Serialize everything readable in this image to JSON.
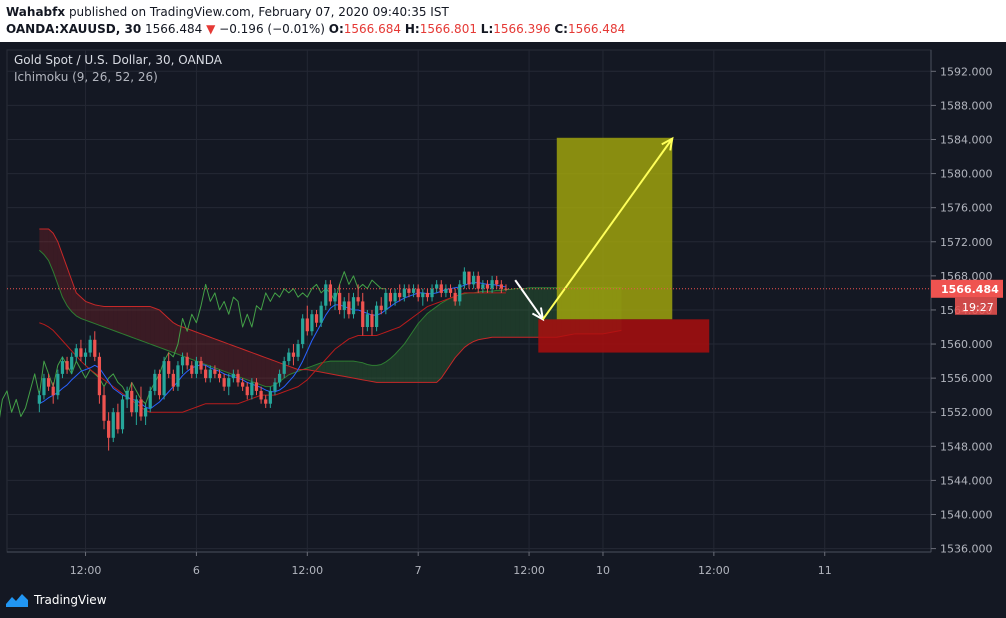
{
  "header": {
    "author": "Wahabfx",
    "published_text": "published on TradingView.com, February 07, 2020 09:40:35 IST",
    "symbol": "OANDA:XAUUSD, 30",
    "last": "1566.484",
    "change_arrow": "▼",
    "change": "−0.196 (−0.01%)",
    "o_label": "O:",
    "o": "1566.684",
    "h_label": "H:",
    "h": "1566.801",
    "l_label": "L:",
    "l": "1566.396",
    "c_label": "C:",
    "c": "1566.484"
  },
  "legend": {
    "title": "Gold Spot / U.S. Dollar, 30, OANDA",
    "indicator": "Ichimoku (9, 26, 52, 26)"
  },
  "brand": {
    "name": "TradingView"
  },
  "colors": {
    "background": "#141823",
    "up": "#26a69a",
    "down": "#ef5350",
    "tenkan": "#2962ff",
    "kijun": "#b71c1c",
    "chikou": "#43a047",
    "span_a": "#2e7d32",
    "span_b": "#c62828",
    "target_zone": "#a4a70c",
    "stop_zone": "#b00d0d",
    "arrow": "#ffff59"
  },
  "chart_data": {
    "type": "candlestick",
    "y_ticks": [
      "1592.000",
      "1588.000",
      "1584.000",
      "1580.000",
      "1576.000",
      "1572.000",
      "1568.000",
      "1564.000",
      "1560.000",
      "1556.000",
      "1552.000",
      "1548.000",
      "1544.000",
      "1540.000",
      "1536.000"
    ],
    "y_range": [
      1535.6,
      1594.5
    ],
    "x_ticks": [
      {
        "label": "12:00",
        "bar": 10
      },
      {
        "label": "6",
        "bar": 34
      },
      {
        "label": "12:00",
        "bar": 58
      },
      {
        "label": "7",
        "bar": 82
      },
      {
        "label": "12:00",
        "bar": 106
      },
      {
        "label": "10",
        "bar": 122
      },
      {
        "label": "12:00",
        "bar": 146
      },
      {
        "label": "11",
        "bar": 170
      }
    ],
    "x_range_bars": [
      -7,
      193
    ],
    "last_price": {
      "value": 1566.484,
      "label": "1566.484"
    },
    "countdown": "19:27",
    "candles": [
      [
        1553.0,
        1554.5,
        1552.0,
        1554.0
      ],
      [
        1554.0,
        1556.5,
        1553.5,
        1556.0
      ],
      [
        1556.0,
        1556.5,
        1554.5,
        1555.0
      ],
      [
        1555.0,
        1555.5,
        1553.0,
        1554.0
      ],
      [
        1554.0,
        1557.0,
        1553.5,
        1556.5
      ],
      [
        1556.5,
        1558.5,
        1556.0,
        1558.0
      ],
      [
        1558.0,
        1558.5,
        1556.5,
        1557.0
      ],
      [
        1557.0,
        1559.0,
        1556.5,
        1558.5
      ],
      [
        1558.5,
        1560.0,
        1558.0,
        1559.5
      ],
      [
        1559.5,
        1560.5,
        1558.0,
        1558.5
      ],
      [
        1558.5,
        1559.5,
        1557.5,
        1559.0
      ],
      [
        1559.0,
        1561.0,
        1558.5,
        1560.5
      ],
      [
        1560.5,
        1561.5,
        1558.0,
        1558.5
      ],
      [
        1558.5,
        1559.0,
        1553.0,
        1554.0
      ],
      [
        1554.0,
        1555.0,
        1550.0,
        1551.0
      ],
      [
        1551.0,
        1552.0,
        1547.5,
        1549.0
      ],
      [
        1549.0,
        1552.5,
        1548.5,
        1552.0
      ],
      [
        1552.0,
        1553.0,
        1549.5,
        1550.0
      ],
      [
        1550.0,
        1554.0,
        1549.5,
        1553.5
      ],
      [
        1553.5,
        1555.0,
        1552.5,
        1554.5
      ],
      [
        1554.5,
        1555.5,
        1551.5,
        1552.0
      ],
      [
        1552.0,
        1554.0,
        1550.5,
        1553.5
      ],
      [
        1553.5,
        1555.0,
        1551.0,
        1551.5
      ],
      [
        1551.5,
        1553.0,
        1550.5,
        1552.5
      ],
      [
        1552.5,
        1555.0,
        1552.0,
        1554.5
      ],
      [
        1554.5,
        1557.0,
        1554.0,
        1556.5
      ],
      [
        1556.5,
        1557.0,
        1553.5,
        1554.0
      ],
      [
        1554.0,
        1558.5,
        1553.5,
        1558.0
      ],
      [
        1558.0,
        1559.0,
        1556.0,
        1556.5
      ],
      [
        1556.5,
        1557.0,
        1554.5,
        1555.0
      ],
      [
        1555.0,
        1558.0,
        1554.5,
        1557.5
      ],
      [
        1557.5,
        1559.0,
        1556.5,
        1558.5
      ],
      [
        1558.5,
        1559.0,
        1557.0,
        1557.5
      ],
      [
        1557.5,
        1558.0,
        1556.0,
        1556.5
      ],
      [
        1556.5,
        1558.5,
        1556.0,
        1558.0
      ],
      [
        1558.0,
        1558.5,
        1556.5,
        1557.0
      ],
      [
        1557.0,
        1557.5,
        1555.5,
        1556.0
      ],
      [
        1556.0,
        1557.5,
        1555.5,
        1557.0
      ],
      [
        1557.0,
        1557.5,
        1556.0,
        1556.5
      ],
      [
        1556.5,
        1557.0,
        1555.5,
        1556.0
      ],
      [
        1556.0,
        1556.5,
        1554.5,
        1555.0
      ],
      [
        1555.0,
        1556.5,
        1554.0,
        1556.0
      ],
      [
        1556.0,
        1557.0,
        1555.5,
        1556.5
      ],
      [
        1556.5,
        1557.0,
        1555.0,
        1555.5
      ],
      [
        1555.5,
        1556.0,
        1554.5,
        1555.0
      ],
      [
        1555.0,
        1555.5,
        1553.5,
        1554.0
      ],
      [
        1554.0,
        1556.0,
        1553.5,
        1555.5
      ],
      [
        1555.5,
        1556.0,
        1554.0,
        1554.5
      ],
      [
        1554.5,
        1555.0,
        1553.0,
        1553.5
      ],
      [
        1553.5,
        1554.0,
        1552.5,
        1553.0
      ],
      [
        1553.0,
        1555.0,
        1552.5,
        1554.5
      ],
      [
        1554.5,
        1556.0,
        1554.0,
        1555.5
      ],
      [
        1555.5,
        1557.0,
        1555.0,
        1556.5
      ],
      [
        1556.5,
        1558.5,
        1556.0,
        1558.0
      ],
      [
        1558.0,
        1559.5,
        1557.5,
        1559.0
      ],
      [
        1559.0,
        1560.0,
        1557.5,
        1558.5
      ],
      [
        1558.5,
        1560.5,
        1558.0,
        1560.0
      ],
      [
        1560.0,
        1563.5,
        1559.5,
        1563.0
      ],
      [
        1563.0,
        1564.5,
        1561.0,
        1561.5
      ],
      [
        1561.5,
        1564.0,
        1561.0,
        1563.5
      ],
      [
        1563.5,
        1564.0,
        1562.0,
        1562.5
      ],
      [
        1562.5,
        1565.0,
        1562.0,
        1564.5
      ],
      [
        1564.5,
        1567.5,
        1564.0,
        1567.0
      ],
      [
        1567.0,
        1567.5,
        1564.5,
        1565.0
      ],
      [
        1565.0,
        1566.5,
        1564.0,
        1566.0
      ],
      [
        1566.0,
        1567.0,
        1563.5,
        1564.0
      ],
      [
        1564.0,
        1565.5,
        1563.0,
        1565.0
      ],
      [
        1565.0,
        1566.0,
        1563.0,
        1563.5
      ],
      [
        1563.5,
        1566.0,
        1563.0,
        1565.5
      ],
      [
        1565.5,
        1567.0,
        1564.5,
        1565.0
      ],
      [
        1565.0,
        1566.0,
        1561.0,
        1562.0
      ],
      [
        1562.0,
        1564.0,
        1561.5,
        1563.5
      ],
      [
        1563.5,
        1564.0,
        1561.0,
        1562.0
      ],
      [
        1562.0,
        1565.0,
        1561.5,
        1564.5
      ],
      [
        1564.5,
        1565.5,
        1563.5,
        1564.0
      ],
      [
        1564.0,
        1566.5,
        1563.5,
        1566.0
      ],
      [
        1566.0,
        1566.5,
        1564.5,
        1565.0
      ],
      [
        1565.0,
        1566.5,
        1564.5,
        1566.0
      ],
      [
        1566.0,
        1567.0,
        1565.0,
        1565.5
      ],
      [
        1565.5,
        1567.0,
        1565.0,
        1566.5
      ],
      [
        1566.5,
        1567.0,
        1565.5,
        1566.0
      ],
      [
        1566.0,
        1567.0,
        1565.5,
        1566.5
      ],
      [
        1566.5,
        1567.0,
        1565.0,
        1565.5
      ],
      [
        1565.5,
        1566.5,
        1564.5,
        1566.0
      ],
      [
        1566.0,
        1566.5,
        1565.0,
        1565.5
      ],
      [
        1565.5,
        1567.0,
        1565.0,
        1566.5
      ],
      [
        1566.5,
        1567.5,
        1566.0,
        1567.0
      ],
      [
        1567.0,
        1567.5,
        1565.5,
        1566.0
      ],
      [
        1566.0,
        1567.0,
        1565.5,
        1566.5
      ],
      [
        1566.5,
        1567.0,
        1565.5,
        1566.0
      ],
      [
        1566.0,
        1566.5,
        1564.5,
        1565.0
      ],
      [
        1565.0,
        1567.5,
        1564.5,
        1567.0
      ],
      [
        1567.0,
        1569.0,
        1566.5,
        1568.5
      ],
      [
        1568.5,
        1568.5,
        1566.5,
        1567.0
      ],
      [
        1567.0,
        1568.5,
        1566.5,
        1568.0
      ],
      [
        1568.0,
        1568.5,
        1566.0,
        1566.5
      ],
      [
        1566.5,
        1567.5,
        1566.0,
        1567.0
      ],
      [
        1567.0,
        1567.5,
        1566.0,
        1566.5
      ],
      [
        1566.5,
        1568.0,
        1566.0,
        1567.5
      ],
      [
        1567.5,
        1568.0,
        1566.5,
        1567.0
      ],
      [
        1567.0,
        1567.5,
        1566.0,
        1566.5
      ],
      [
        1566.5,
        1567.0,
        1566.2,
        1566.484
      ]
    ],
    "tenkan": [
      1553.0,
      1553.3,
      1553.7,
      1554.0,
      1554.3,
      1554.8,
      1555.2,
      1555.8,
      1556.3,
      1556.8,
      1557.0,
      1557.2,
      1557.5,
      1557.2,
      1556.4,
      1555.6,
      1554.8,
      1554.4,
      1554.0,
      1553.8,
      1553.5,
      1553.4,
      1553.0,
      1552.6,
      1552.4,
      1552.8,
      1553.2,
      1553.8,
      1554.4,
      1555.0,
      1555.6,
      1556.3,
      1556.8,
      1557.2,
      1557.4,
      1557.6,
      1557.5,
      1557.2,
      1557.0,
      1556.8,
      1556.5,
      1556.3,
      1556.2,
      1556.0,
      1555.8,
      1555.5,
      1555.3,
      1555.1,
      1554.9,
      1554.6,
      1554.4,
      1554.4,
      1554.6,
      1555.0,
      1555.6,
      1556.2,
      1557.0,
      1558.0,
      1559.2,
      1560.4,
      1561.4,
      1562.4,
      1563.4,
      1564.2,
      1564.6,
      1564.6,
      1564.4,
      1564.2,
      1564.0,
      1564.0,
      1563.8,
      1563.6,
      1563.4,
      1563.4,
      1563.6,
      1564.0,
      1564.4,
      1564.8,
      1565.1,
      1565.4,
      1565.6,
      1565.8,
      1566.0,
      1566.0,
      1565.9,
      1565.9,
      1566.0,
      1566.2,
      1566.4,
      1566.5,
      1566.6,
      1566.7,
      1566.9,
      1567.1,
      1567.2,
      1567.2,
      1567.1,
      1567.0,
      1567.0,
      1566.9,
      1566.8,
      1566.7
    ],
    "kijun": [
      1562.5,
      1562.3,
      1562.0,
      1561.6,
      1561.0,
      1560.4,
      1559.8,
      1559.2,
      1558.6,
      1558.0,
      1557.5,
      1557.0,
      1556.6,
      1556.2,
      1555.8,
      1555.4,
      1555.0,
      1554.6,
      1554.2,
      1553.8,
      1553.4,
      1553.0,
      1552.6,
      1552.2,
      1552.0,
      1552.0,
      1552.0,
      1552.0,
      1552.0,
      1552.0,
      1552.0,
      1552.0,
      1552.2,
      1552.4,
      1552.6,
      1552.8,
      1553.0,
      1553.0,
      1553.0,
      1553.0,
      1553.0,
      1553.0,
      1553.0,
      1553.0,
      1553.2,
      1553.4,
      1553.6,
      1553.8,
      1554.0,
      1554.0,
      1554.0,
      1554.0,
      1554.2,
      1554.4,
      1554.6,
      1554.8,
      1555.0,
      1555.4,
      1555.8,
      1556.4,
      1557.0,
      1557.6,
      1558.2,
      1558.8,
      1559.4,
      1559.8,
      1560.2,
      1560.6,
      1560.8,
      1561.0,
      1561.0,
      1561.0,
      1561.0,
      1561.0,
      1561.2,
      1561.4,
      1561.6,
      1561.8,
      1562.0,
      1562.4,
      1562.8,
      1563.2,
      1563.6,
      1564.0,
      1564.4,
      1564.6,
      1564.8,
      1565.0,
      1565.2,
      1565.4,
      1565.6,
      1565.8,
      1566.0,
      1566.0,
      1566.0,
      1566.0,
      1566.0,
      1566.0,
      1566.0,
      1566.0,
      1566.0,
      1566.0
    ],
    "chikou_shift": -26,
    "cloud": {
      "span_a": [
        1571.0,
        1570.5,
        1569.8,
        1568.5,
        1567.0,
        1565.5,
        1564.5,
        1563.8,
        1563.3,
        1563.0,
        1562.8,
        1562.6,
        1562.4,
        1562.2,
        1562.0,
        1561.8,
        1561.6,
        1561.4,
        1561.2,
        1561.0,
        1560.8,
        1560.6,
        1560.4,
        1560.2,
        1560.0,
        1559.8,
        1559.6,
        1559.4,
        1559.2,
        1559.0,
        1558.8,
        1558.6,
        1558.4,
        1558.2,
        1558.0,
        1557.8,
        1557.6,
        1557.4,
        1557.2,
        1557.0,
        1556.8,
        1556.6,
        1556.4,
        1556.2,
        1556.0,
        1555.8,
        1555.6,
        1555.4,
        1555.2,
        1555.0,
        1555.0,
        1555.2,
        1555.6,
        1556.0,
        1556.4,
        1556.6,
        1556.8,
        1557.0,
        1557.2,
        1557.4,
        1557.6,
        1557.8,
        1557.9,
        1558.0,
        1558.0,
        1558.0,
        1558.0,
        1558.0,
        1558.0,
        1557.9,
        1557.8,
        1557.6,
        1557.5,
        1557.5,
        1557.6,
        1557.9,
        1558.3,
        1558.8,
        1559.4,
        1560.0,
        1560.8,
        1561.6,
        1562.4,
        1563.0,
        1563.6,
        1564.0,
        1564.4,
        1564.8,
        1565.1,
        1565.4,
        1565.6,
        1565.8,
        1565.9,
        1566.0,
        1566.0,
        1566.1,
        1566.2,
        1566.2,
        1566.2,
        1566.3,
        1566.3,
        1566.4,
        1566.4,
        1566.5,
        1566.5,
        1566.5,
        1566.6,
        1566.6,
        1566.6,
        1566.6,
        1566.6,
        1566.6,
        1566.6,
        1566.6,
        1566.6,
        1566.6,
        1566.6,
        1566.6,
        1566.6,
        1566.6,
        1566.6,
        1566.6,
        1566.6,
        1566.6,
        1566.6,
        1566.6,
        1566.6
      ],
      "span_b": [
        1573.5,
        1573.5,
        1573.5,
        1573.0,
        1572.0,
        1570.5,
        1569.0,
        1567.5,
        1566.0,
        1565.5,
        1565.0,
        1564.8,
        1564.6,
        1564.5,
        1564.4,
        1564.4,
        1564.4,
        1564.4,
        1564.4,
        1564.4,
        1564.4,
        1564.4,
        1564.4,
        1564.4,
        1564.4,
        1564.2,
        1564.0,
        1563.5,
        1563.0,
        1562.5,
        1562.2,
        1562.0,
        1561.8,
        1561.6,
        1561.4,
        1561.2,
        1561.0,
        1560.8,
        1560.6,
        1560.4,
        1560.2,
        1560.0,
        1559.8,
        1559.6,
        1559.4,
        1559.2,
        1559.0,
        1558.8,
        1558.6,
        1558.4,
        1558.2,
        1558.0,
        1557.8,
        1557.6,
        1557.4,
        1557.2,
        1557.0,
        1557.0,
        1557.0,
        1556.9,
        1556.8,
        1556.7,
        1556.6,
        1556.5,
        1556.4,
        1556.3,
        1556.2,
        1556.1,
        1556.0,
        1555.9,
        1555.8,
        1555.7,
        1555.6,
        1555.5,
        1555.5,
        1555.5,
        1555.5,
        1555.5,
        1555.5,
        1555.5,
        1555.5,
        1555.5,
        1555.5,
        1555.5,
        1555.5,
        1555.5,
        1555.5,
        1556.0,
        1556.8,
        1557.6,
        1558.4,
        1559.0,
        1559.6,
        1560.0,
        1560.3,
        1560.5,
        1560.6,
        1560.7,
        1560.8,
        1560.8,
        1560.8,
        1560.8,
        1560.8,
        1560.8,
        1560.8,
        1560.8,
        1560.8,
        1560.8,
        1560.8,
        1560.8,
        1560.8,
        1560.8,
        1560.8,
        1560.9,
        1561.0,
        1561.1,
        1561.2,
        1561.2,
        1561.2,
        1561.2,
        1561.2,
        1561.2,
        1561.2,
        1561.3,
        1561.4,
        1561.5,
        1561.6
      ]
    },
    "target_zone": {
      "from_bar": 112,
      "to_bar": 137,
      "y_low": 1562.9,
      "y_high": 1584.2
    },
    "stop_zone": {
      "from_bar": 108,
      "to_bar": 145,
      "y_low": 1559.0,
      "y_high": 1562.9
    },
    "down_arrow": {
      "from": [
        103,
        1567.5
      ],
      "to": [
        109,
        1562.9
      ]
    },
    "up_arrow": {
      "from": [
        109,
        1562.9
      ],
      "to": [
        137,
        1584.1
      ]
    }
  }
}
